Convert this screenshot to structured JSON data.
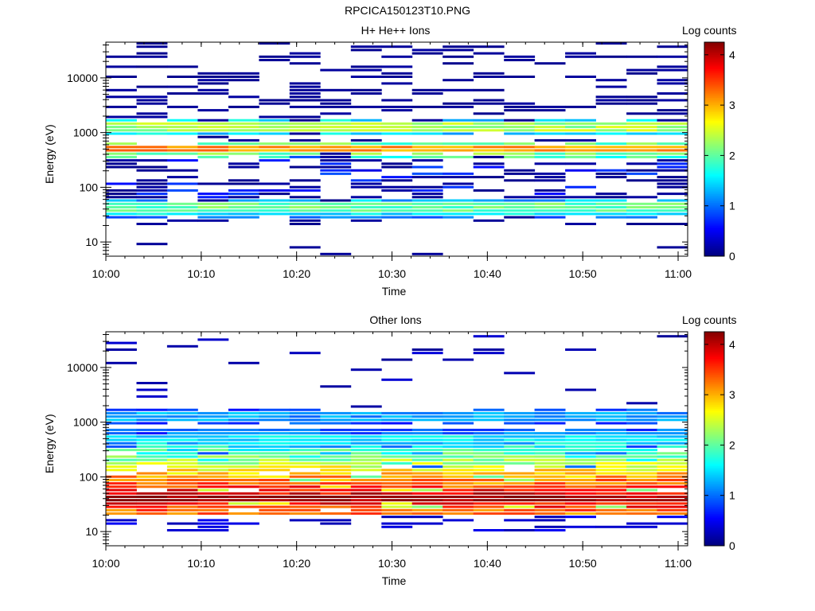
{
  "figure_title": "RPCICA150123T10.PNG",
  "chart_data": [
    {
      "type": "heatmap",
      "title": "H+ He++ Ions",
      "xlabel": "Time",
      "ylabel": "Energy (eV)",
      "x_ticks": [
        "10:00",
        "10:10",
        "10:20",
        "10:30",
        "10:40",
        "10:50",
        "11:00"
      ],
      "x_range": [
        "10:00",
        "11:01"
      ],
      "y_scale": "log",
      "y_ticks": [
        "10",
        "100",
        "1000",
        "10000"
      ],
      "y_range": [
        5.5,
        45000
      ],
      "colorbar": {
        "label": "Log counts",
        "ticks": [
          "0",
          "1",
          "2",
          "3",
          "4"
        ],
        "range": [
          0,
          4.25
        ],
        "colormap": "jet"
      },
      "dominant_bands": [
        {
          "energy_eV": 1250,
          "log_counts": 2.3
        },
        {
          "energy_eV": 480,
          "log_counts": 3.1
        },
        {
          "energy_eV": 42,
          "log_counts": 2.0
        },
        {
          "energy_eV": 35,
          "log_counts": 1.5
        }
      ]
    },
    {
      "type": "heatmap",
      "title": "Other Ions",
      "xlabel": "Time",
      "ylabel": "Energy (eV)",
      "x_ticks": [
        "10:00",
        "10:10",
        "10:20",
        "10:30",
        "10:40",
        "10:50",
        "11:00"
      ],
      "x_range": [
        "10:00",
        "11:01"
      ],
      "y_scale": "log",
      "y_ticks": [
        "10",
        "100",
        "1000",
        "10000"
      ],
      "y_range": [
        5.5,
        45000
      ],
      "colorbar": {
        "label": "Log counts",
        "ticks": [
          "0",
          "1",
          "2",
          "3",
          "4"
        ],
        "range": [
          0,
          4.25
        ],
        "colormap": "jet"
      },
      "dominant_bands": [
        {
          "energy_eV": 40,
          "log_counts": 4.1
        },
        {
          "energy_eV": 70,
          "log_counts": 3.0
        },
        {
          "energy_eV": 200,
          "log_counts": 1.8
        },
        {
          "energy_eV": 500,
          "log_counts": 1.5
        },
        {
          "energy_eV": 1250,
          "log_counts": 1.2
        }
      ]
    }
  ]
}
